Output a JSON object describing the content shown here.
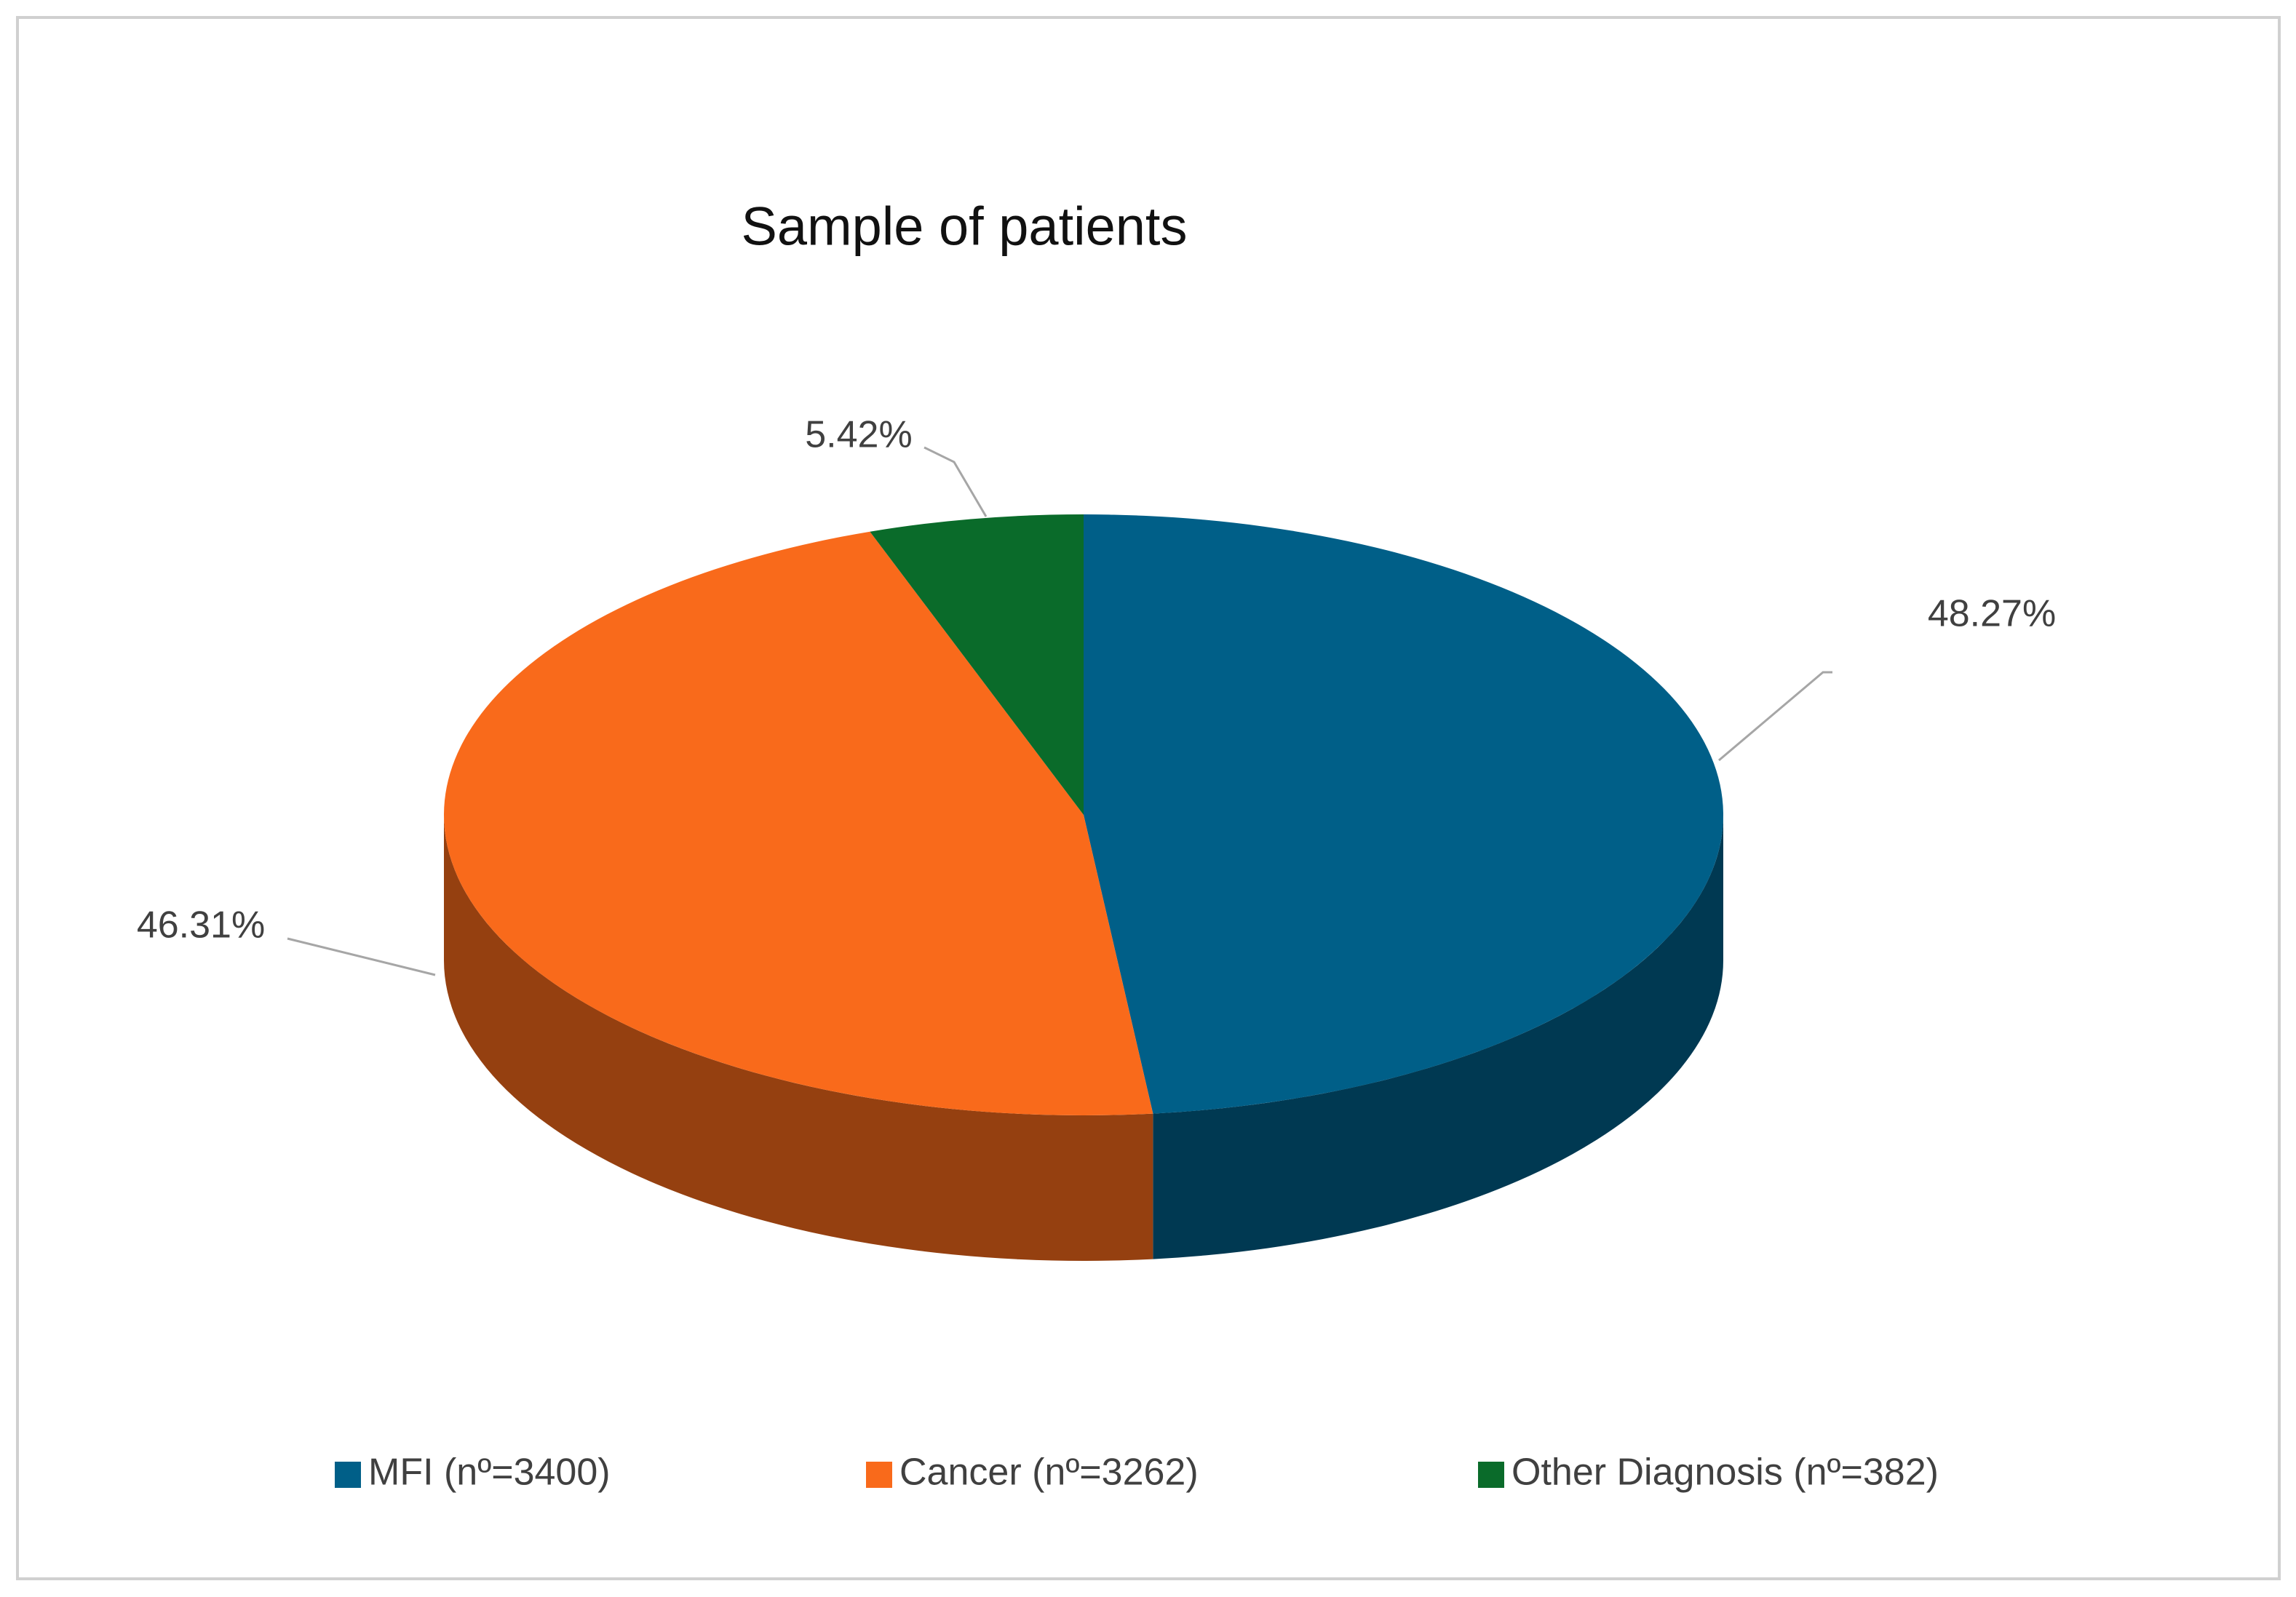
{
  "chart_data": {
    "type": "pie",
    "title": "Sample of patients",
    "categories": [
      "MFI (nº=3400)",
      "Cancer (nº=3262)",
      "Other Diagnosis (nº=382)"
    ],
    "values": [
      48.27,
      46.31,
      5.42
    ],
    "value_labels": [
      "48.27%",
      "46.31%",
      "5.42%"
    ],
    "colors": [
      "#005f88",
      "#f96a1b",
      "#0a6b2a"
    ],
    "legend": "bottom"
  }
}
